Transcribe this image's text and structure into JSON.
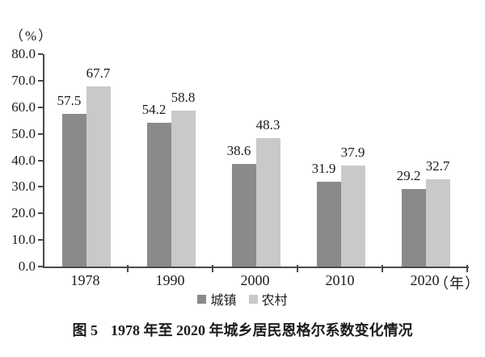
{
  "caption": {
    "label": "图 5",
    "title": "1978 年至 2020 年城乡居民恩格尔系数变化情况"
  },
  "chart_data": {
    "type": "bar",
    "title": "图 5 1978 年至 2020 年城乡居民恩格尔系数变化情况",
    "categories": [
      "1978",
      "1990",
      "2000",
      "2010",
      "2020"
    ],
    "series": [
      {
        "name": "城镇",
        "color": "#8a8a8a",
        "values": [
          57.5,
          54.2,
          38.6,
          31.9,
          29.2
        ]
      },
      {
        "name": "农村",
        "color": "#c9c9c9",
        "values": [
          67.7,
          58.8,
          48.3,
          37.9,
          32.7
        ]
      }
    ],
    "xlabel": "（年）",
    "ylabel": "（%）",
    "ylim": [
      0,
      80
    ],
    "y_tick_labels": [
      "80.0",
      "70.0",
      "60.0",
      "50.0",
      "40.0",
      "30.0",
      "20.0",
      "10.0",
      "0.0"
    ],
    "grid": false,
    "legend_position": "bottom",
    "value_labels": true,
    "axis_color": "#4a4a4a",
    "text_color": "#1c1c1c"
  }
}
